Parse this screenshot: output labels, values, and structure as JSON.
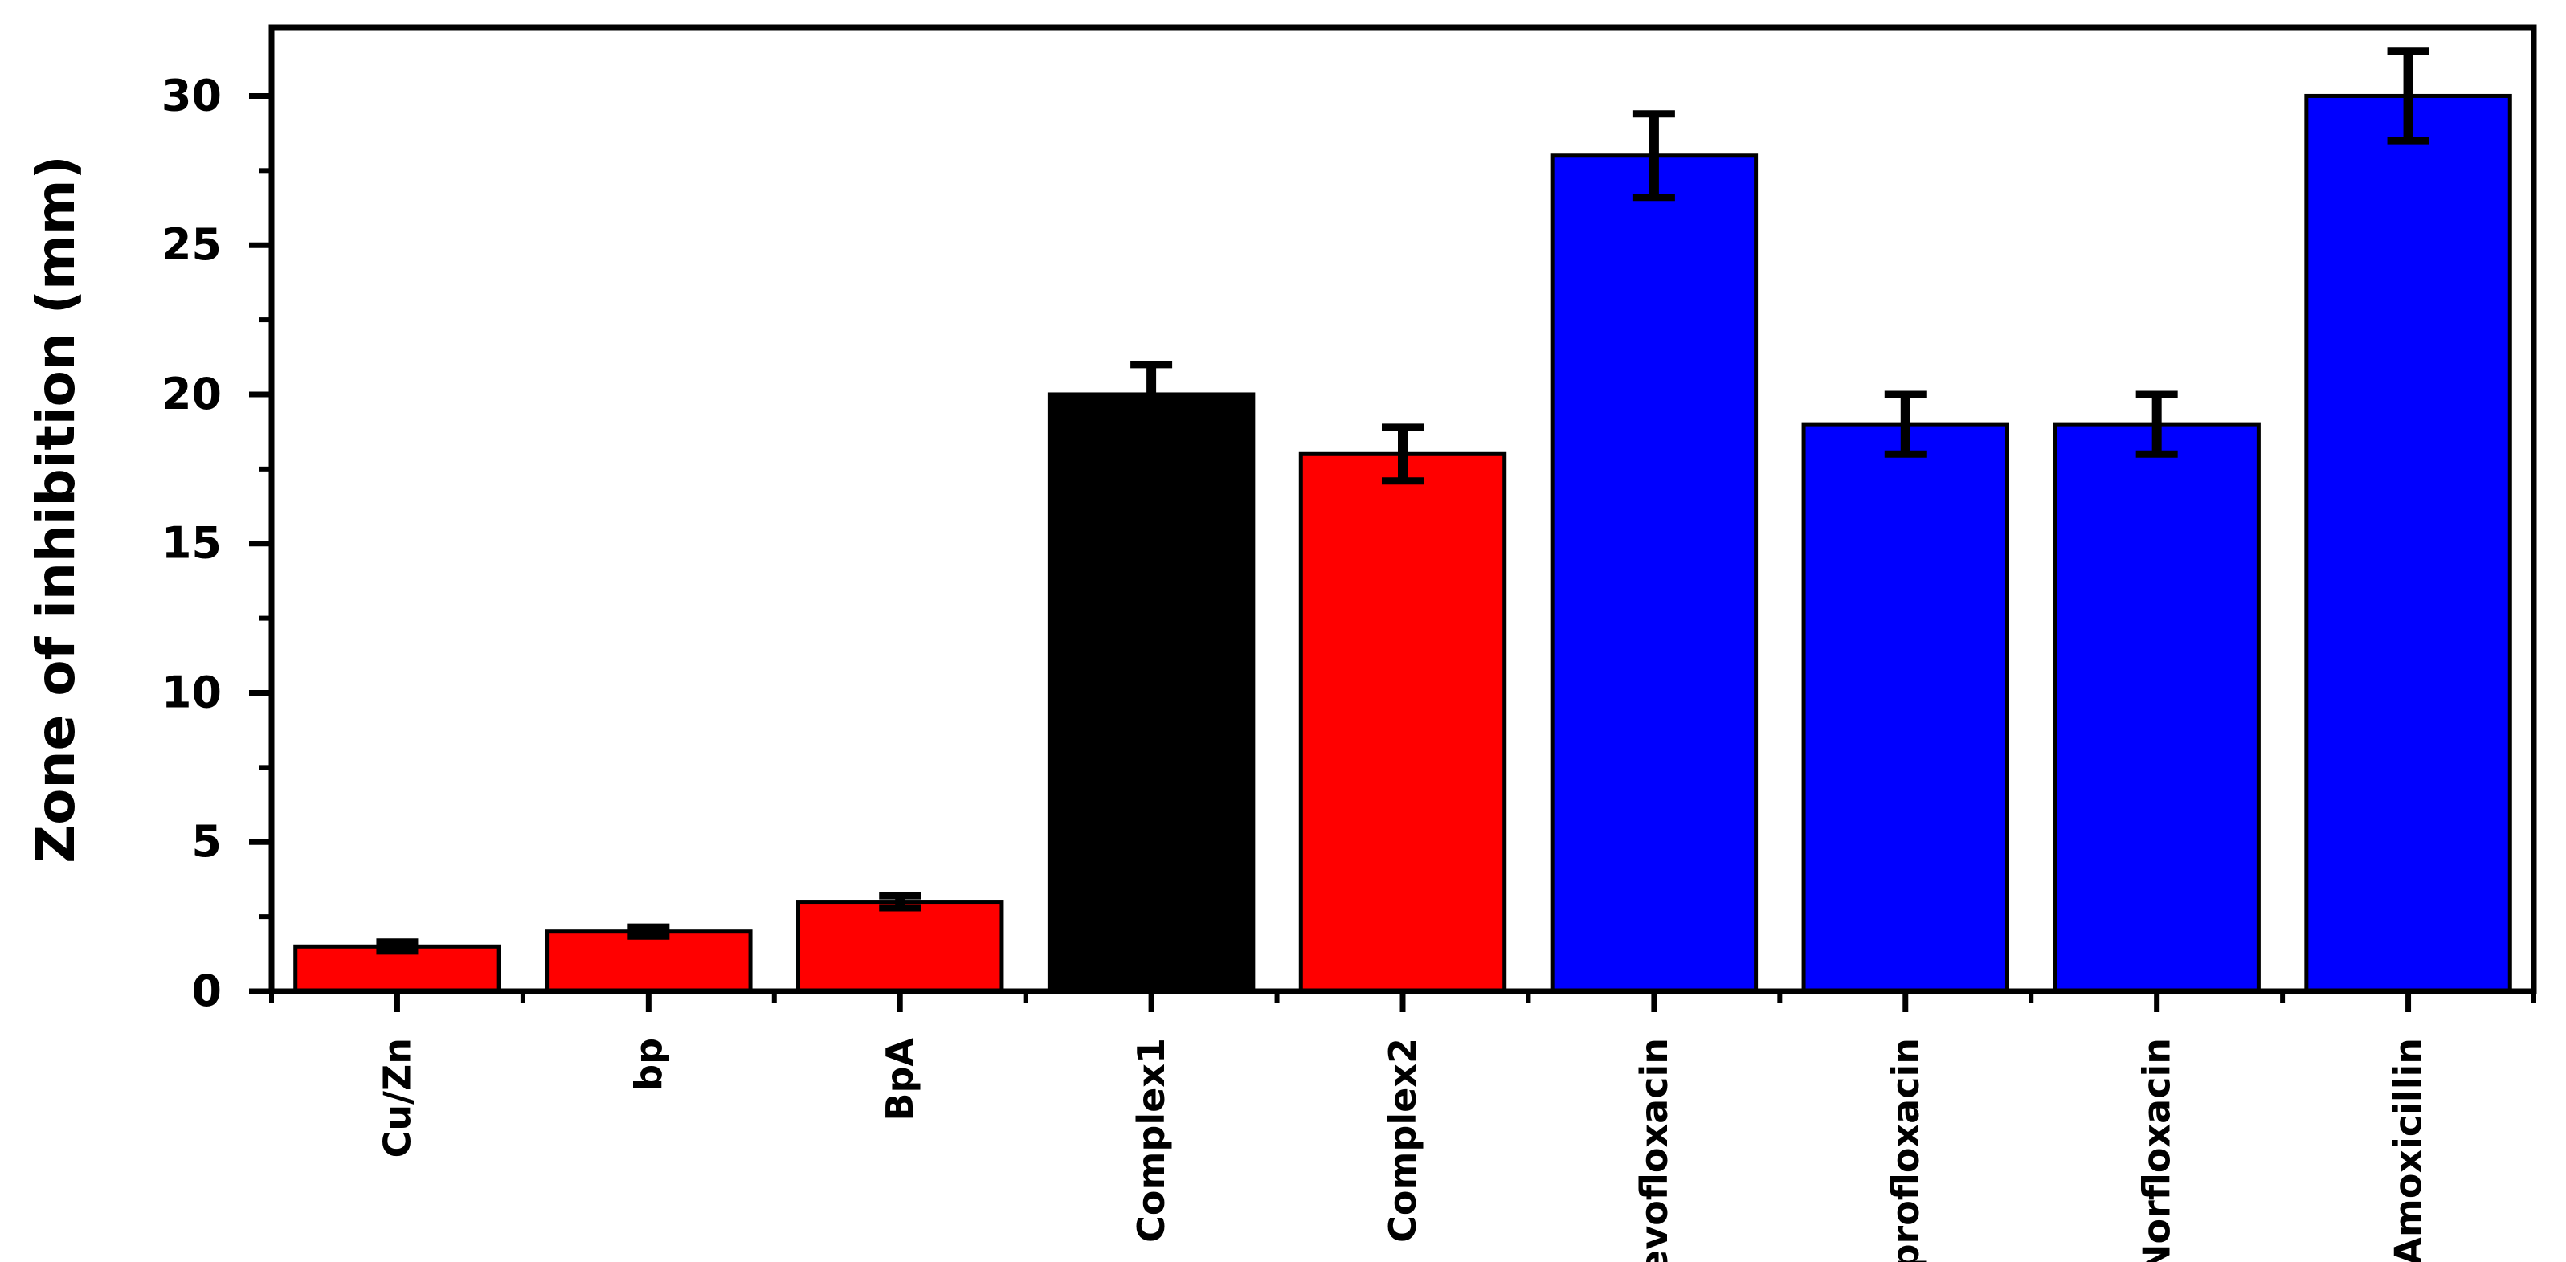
{
  "chart_data": {
    "type": "bar",
    "title": "",
    "xlabel": "",
    "ylabel": "Zone of inhibition (mm)",
    "ylim": [
      0,
      32.3
    ],
    "yticks": [
      0,
      5,
      10,
      15,
      20,
      25,
      30
    ],
    "grid": false,
    "legend": "none",
    "categories": [
      "Cu/Zn",
      "bp",
      "BpA",
      "Complex1",
      "Complex2",
      "Levofloxacin",
      "Ciprofloxacin",
      "Norfloxacin",
      "Amoxicillin"
    ],
    "values": [
      1.5,
      2.0,
      3.0,
      20.0,
      18.0,
      28.0,
      19.0,
      19.0,
      30.0
    ],
    "errors": [
      0.15,
      0.15,
      0.2,
      1.0,
      0.9,
      1.4,
      1.0,
      1.0,
      1.5
    ],
    "colors": [
      "#ff0000",
      "#ff0000",
      "#ff0000",
      "#000000",
      "#ff0000",
      "#0000ff",
      "#0000ff",
      "#0000ff",
      "#0000ff"
    ]
  }
}
